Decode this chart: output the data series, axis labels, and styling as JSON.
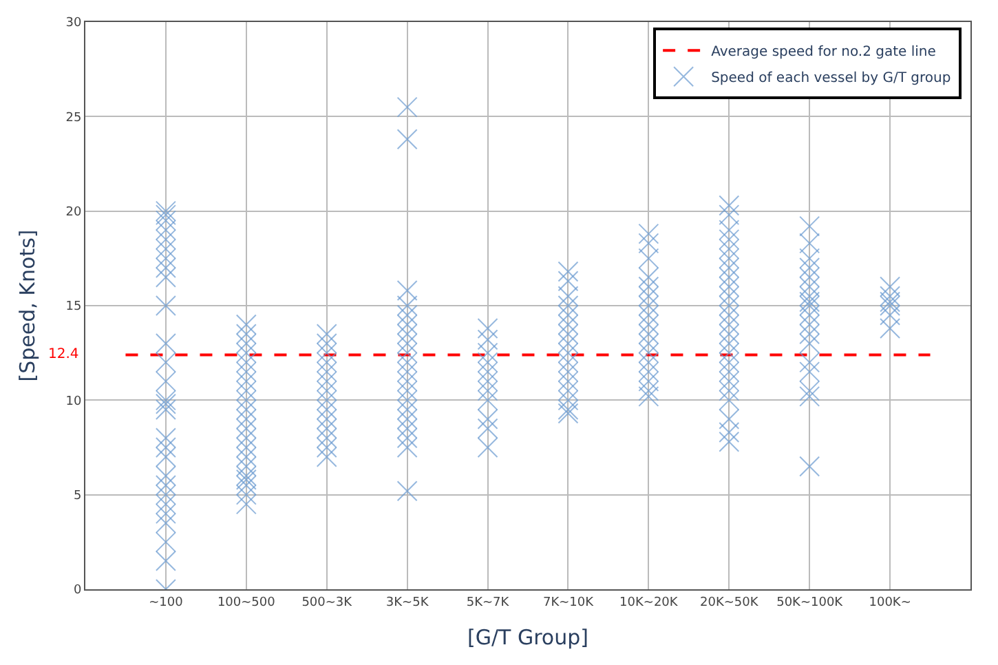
{
  "chart_data": {
    "type": "scatter",
    "xlabel": "[G/T Group]",
    "ylabel": "[Speed, Knots]",
    "categories": [
      "~100",
      "100~500",
      "500~3K",
      "3K~5K",
      "5K~7K",
      "7K~10K",
      "10K~20K",
      "20K~50K",
      "50K~100K",
      "100K~"
    ],
    "series": [
      {
        "name": "Speed of each vessel by G/T group",
        "color": "#6a9ad0",
        "x": [
          "~100",
          "~100",
          "~100",
          "~100",
          "~100",
          "~100",
          "~100",
          "~100",
          "~100",
          "~100",
          "~100",
          "~100",
          "~100",
          "~100",
          "~100",
          "~100",
          "~100",
          "~100",
          "~100",
          "~100",
          "~100",
          "~100",
          "~100",
          "~100",
          "~100",
          "~100",
          "~100",
          "~100",
          "100~500",
          "100~500",
          "100~500",
          "100~500",
          "100~500",
          "100~500",
          "100~500",
          "100~500",
          "100~500",
          "100~500",
          "100~500",
          "100~500",
          "100~500",
          "100~500",
          "100~500",
          "100~500",
          "100~500",
          "100~500",
          "100~500",
          "100~500",
          "100~500",
          "500~3K",
          "500~3K",
          "500~3K",
          "500~3K",
          "500~3K",
          "500~3K",
          "500~3K",
          "500~3K",
          "500~3K",
          "500~3K",
          "500~3K",
          "500~3K",
          "500~3K",
          "500~3K",
          "3K~5K",
          "3K~5K",
          "3K~5K",
          "3K~5K",
          "3K~5K",
          "3K~5K",
          "3K~5K",
          "3K~5K",
          "3K~5K",
          "3K~5K",
          "3K~5K",
          "3K~5K",
          "3K~5K",
          "3K~5K",
          "3K~5K",
          "3K~5K",
          "3K~5K",
          "3K~5K",
          "3K~5K",
          "3K~5K",
          "5K~7K",
          "5K~7K",
          "5K~7K",
          "5K~7K",
          "5K~7K",
          "5K~7K",
          "5K~7K",
          "5K~7K",
          "5K~7K",
          "5K~7K",
          "5K~7K",
          "7K~10K",
          "7K~10K",
          "7K~10K",
          "7K~10K",
          "7K~10K",
          "7K~10K",
          "7K~10K",
          "7K~10K",
          "7K~10K",
          "7K~10K",
          "7K~10K",
          "7K~10K",
          "7K~10K",
          "7K~10K",
          "7K~10K",
          "7K~10K",
          "10K~20K",
          "10K~20K",
          "10K~20K",
          "10K~20K",
          "10K~20K",
          "10K~20K",
          "10K~20K",
          "10K~20K",
          "10K~20K",
          "10K~20K",
          "10K~20K",
          "10K~20K",
          "10K~20K",
          "10K~20K",
          "10K~20K",
          "10K~20K",
          "10K~20K",
          "20K~50K",
          "20K~50K",
          "20K~50K",
          "20K~50K",
          "20K~50K",
          "20K~50K",
          "20K~50K",
          "20K~50K",
          "20K~50K",
          "20K~50K",
          "20K~50K",
          "20K~50K",
          "20K~50K",
          "20K~50K",
          "20K~50K",
          "20K~50K",
          "20K~50K",
          "20K~50K",
          "20K~50K",
          "20K~50K",
          "20K~50K",
          "20K~50K",
          "20K~50K",
          "20K~50K",
          "50K~100K",
          "50K~100K",
          "50K~100K",
          "50K~100K",
          "50K~100K",
          "50K~100K",
          "50K~100K",
          "50K~100K",
          "50K~100K",
          "50K~100K",
          "50K~100K",
          "50K~100K",
          "50K~100K",
          "50K~100K",
          "50K~100K",
          "50K~100K",
          "50K~100K",
          "50K~100K",
          "100K~",
          "100K~",
          "100K~",
          "100K~",
          "100K~",
          "100K~"
        ],
        "values": [
          20,
          19.8,
          19.5,
          19,
          18.5,
          18,
          17.5,
          17,
          16.5,
          15,
          13,
          12,
          11,
          10,
          9.8,
          9.5,
          8,
          7.5,
          7,
          6,
          5.5,
          5,
          4.5,
          4,
          3.5,
          2.5,
          1.5,
          0,
          14,
          13.5,
          13,
          12.5,
          12,
          11.5,
          11,
          10.5,
          10,
          9.5,
          9,
          8.5,
          8,
          7.5,
          7,
          6.5,
          6,
          5.8,
          5.5,
          5,
          4.5,
          13.5,
          13,
          12.5,
          12,
          11.5,
          11,
          10.5,
          10,
          9.5,
          9,
          8.5,
          8,
          7.5,
          7,
          25.5,
          23.8,
          15.8,
          15,
          14.5,
          14,
          13.5,
          13,
          12.5,
          12,
          11.5,
          11,
          10.5,
          10,
          9.5,
          9,
          8.5,
          8,
          7.5,
          5.2,
          13.8,
          13.2,
          12.5,
          12,
          11.5,
          11,
          10.5,
          10,
          9,
          8.5,
          7.5,
          16.8,
          16.3,
          15.5,
          15,
          14.5,
          14,
          13.5,
          13,
          12.5,
          12,
          11.5,
          11,
          10.5,
          10,
          9.5,
          9.3,
          18.8,
          18.3,
          17.5,
          16.5,
          16,
          15.5,
          15,
          14.5,
          14,
          13.5,
          13,
          12.5,
          12,
          11.5,
          11,
          10.5,
          10.2,
          20.3,
          19.8,
          19,
          18.5,
          18,
          17.5,
          17,
          16.5,
          16,
          15.5,
          15,
          14.5,
          14,
          13.5,
          13,
          12.5,
          12,
          11.5,
          11,
          10.5,
          10,
          9,
          8.3,
          7.8,
          19.2,
          18.3,
          17.5,
          17,
          16.5,
          16,
          15.5,
          15.2,
          15,
          14.5,
          14,
          13.5,
          13,
          12,
          11.5,
          10.5,
          10.2,
          6.5,
          16,
          15.5,
          15.2,
          15,
          14.5,
          13.8
        ]
      }
    ],
    "ref_lines": [
      {
        "axis": "y",
        "value": 12.4,
        "label": "Average speed for no.2 gate line",
        "color": "#ff0000",
        "line_style": "dashed"
      }
    ],
    "annotations": [
      "12.4"
    ],
    "ylim": [
      0,
      30
    ],
    "yticks": [
      0,
      5,
      10,
      15,
      20,
      25,
      30
    ],
    "grid": true,
    "legend": "top right",
    "marker": "cross"
  }
}
